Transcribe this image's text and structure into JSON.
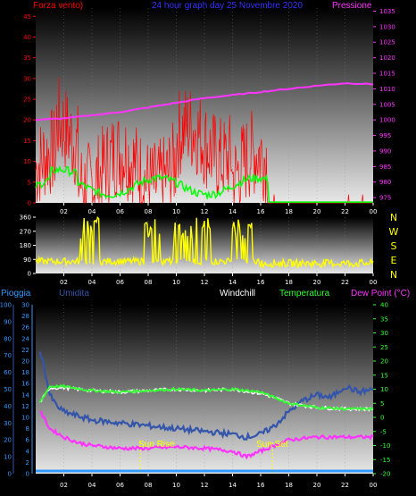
{
  "colors": {
    "wind": "#ff0000",
    "gust_base": "#00ff00",
    "pressure": "#ff33ff",
    "direction": "#ffff00",
    "humidity": "#3355aa",
    "windchill": "#ffffff",
    "temperature": "#33ff33",
    "dewpoint": "#ff33ff",
    "rain": "#3399ff",
    "title": "#3333ff",
    "sun": "#ffff00"
  },
  "chart_data": [
    {
      "type": "line",
      "title": "24 hour graph day  25 Novembre 2020",
      "left_label": "Forza vento)",
      "right_label": "Pressione",
      "x_ticks": [
        "02",
        "04",
        "06",
        "08",
        "10",
        "12",
        "14",
        "16",
        "18",
        "20",
        "22",
        "00"
      ],
      "left_ticks": [
        "0",
        "5",
        "10",
        "15",
        "20",
        "25",
        "30",
        "35",
        "40",
        "45"
      ],
      "left_range": [
        0,
        47
      ],
      "right_ticks": [
        "975",
        "980",
        "985",
        "990",
        "995",
        "1000",
        "1005",
        "1010",
        "1015",
        "1020",
        "1025",
        "1030",
        "1035"
      ],
      "right_range": [
        973.3,
        1036
      ],
      "series": [
        {
          "name": "Forza vento",
          "values_hint": "wind 0-40 for hours 0-16.5, then ~0"
        },
        {
          "name": "Pressione",
          "x": [
            0,
            2,
            4,
            6,
            8,
            10,
            12,
            14,
            16,
            18,
            20,
            22,
            24
          ],
          "values": [
            1000,
            1000.5,
            1001.5,
            1002.5,
            1004,
            1005.5,
            1007,
            1008,
            1009,
            1010,
            1011,
            1011.8,
            1011.5
          ]
        }
      ]
    },
    {
      "type": "line",
      "right_label": "NWSEN",
      "right_letters": [
        "N",
        "W",
        "S",
        "E",
        "N"
      ],
      "left_ticks": [
        "0",
        "90",
        "180",
        "270",
        "360"
      ],
      "range": [
        0,
        360
      ],
      "x_ticks": [
        "02",
        "04",
        "06",
        "08",
        "10",
        "12",
        "14",
        "16",
        "18",
        "20",
        "22",
        "00"
      ]
    },
    {
      "type": "line",
      "labels": {
        "pioggia": "Pioggia",
        "umidita": "Umidita",
        "windchill": "Windchill",
        "temperatura": "Temperatura",
        "dewpoint": "Dew Point (°C)"
      },
      "left_ticks_outer": [
        "0",
        "10",
        "20",
        "30",
        "40",
        "50",
        "60",
        "70",
        "80",
        "90",
        "100"
      ],
      "left_ticks_inner": [
        "0",
        "2",
        "4",
        "6",
        "8",
        "10",
        "12",
        "14",
        "16",
        "18",
        "20",
        "22",
        "24",
        "26",
        "28",
        "30"
      ],
      "right_ticks": [
        "-20",
        "-15",
        "-10",
        "-5",
        "0",
        "5",
        "10",
        "15",
        "20",
        "25",
        "30",
        "35",
        "40"
      ],
      "right_range": [
        -20,
        40
      ],
      "x_ticks": [
        "02",
        "04",
        "06",
        "08",
        "10",
        "12",
        "14",
        "16",
        "18",
        "20",
        "22",
        "00"
      ],
      "sun_rise_label": "Sun Rise",
      "sun_set_label": "Sun Set",
      "sun_rise_hour": 7.45,
      "sun_set_hour": 16.85,
      "series": [
        {
          "name": "Temperatura",
          "x": [
            0,
            1,
            2,
            4,
            6,
            8,
            10,
            12,
            14,
            16,
            17,
            18,
            20,
            22,
            24
          ],
          "values": [
            3,
            11,
            11,
            9.5,
            9,
            9.5,
            10,
            9.5,
            10,
            9,
            7,
            5,
            3.5,
            3,
            3
          ]
        },
        {
          "name": "Windchill",
          "x": [
            0,
            1,
            2,
            4,
            6,
            8,
            10,
            12,
            14,
            16,
            17,
            18,
            20,
            22,
            24
          ],
          "values": [
            3,
            10.5,
            10.5,
            9.5,
            9,
            9.5,
            10,
            9.5,
            10,
            8.5,
            7,
            5,
            3.5,
            3,
            3
          ]
        },
        {
          "name": "Dew Point",
          "x": [
            0,
            1,
            2,
            3,
            4,
            6,
            8,
            10,
            12,
            14,
            15,
            16,
            17,
            18,
            20,
            22,
            24
          ],
          "values": [
            5,
            -4,
            -7,
            -9,
            -10,
            -11,
            -11,
            -10.5,
            -11,
            -12,
            -14,
            -12,
            -10,
            -8,
            -7,
            -7,
            -7
          ]
        }
      ]
    }
  ]
}
